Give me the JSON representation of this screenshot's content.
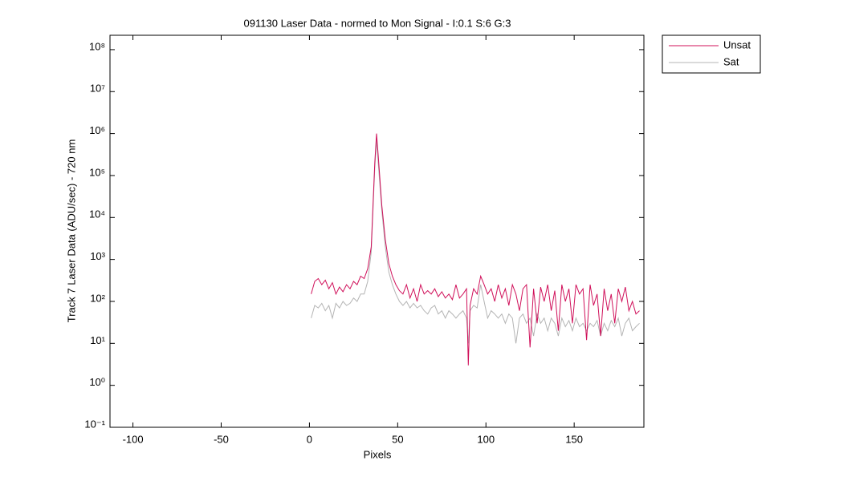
{
  "chart_data": {
    "type": "line",
    "title": "091130 Laser Data - normed to Mon Signal -   I:0.1  S:6  G:3",
    "xlabel": "Pixels",
    "ylabel": "Track 7 Laser Data (ADU/sec) - 720 nm",
    "x": [
      1,
      3,
      5,
      7,
      9,
      11,
      13,
      15,
      17,
      19,
      21,
      23,
      25,
      27,
      29,
      31,
      33,
      35,
      37,
      38,
      39,
      41,
      43,
      45,
      47,
      49,
      51,
      53,
      55,
      57,
      59,
      61,
      63,
      65,
      67,
      69,
      71,
      73,
      75,
      77,
      79,
      81,
      83,
      85,
      87,
      89,
      90,
      91,
      93,
      95,
      97,
      99,
      101,
      103,
      105,
      107,
      109,
      111,
      113,
      115,
      117,
      119,
      121,
      123,
      125,
      127,
      129,
      131,
      133,
      135,
      137,
      139,
      141,
      143,
      145,
      147,
      149,
      151,
      153,
      155,
      157,
      159,
      161,
      163,
      165,
      167,
      169,
      171,
      173,
      175,
      177,
      179,
      181,
      183,
      185,
      187
    ],
    "series": [
      {
        "name": "Unsat",
        "color": "#d0105a",
        "values": [
          150,
          300,
          350,
          250,
          320,
          200,
          280,
          150,
          220,
          170,
          250,
          200,
          300,
          250,
          400,
          350,
          600,
          2000,
          200000,
          1000000,
          300000,
          20000,
          3000,
          800,
          400,
          250,
          180,
          150,
          250,
          120,
          200,
          100,
          250,
          150,
          180,
          150,
          200,
          130,
          170,
          120,
          150,
          110,
          250,
          120,
          150,
          200,
          3,
          80,
          200,
          150,
          400,
          250,
          150,
          200,
          100,
          250,
          120,
          200,
          80,
          250,
          150,
          60,
          200,
          250,
          8,
          200,
          30,
          220,
          100,
          250,
          60,
          180,
          20,
          250,
          100,
          200,
          30,
          250,
          150,
          200,
          12,
          250,
          80,
          150,
          15,
          200,
          60,
          150,
          30,
          200,
          100,
          220,
          60,
          100,
          50,
          60
        ]
      },
      {
        "name": "Sat",
        "color": "#b4b4b4",
        "values": [
          40,
          80,
          70,
          90,
          60,
          80,
          40,
          90,
          70,
          100,
          80,
          90,
          120,
          100,
          150,
          150,
          300,
          1500,
          150000,
          700000,
          200000,
          15000,
          2000,
          500,
          250,
          150,
          100,
          80,
          100,
          70,
          90,
          70,
          80,
          60,
          50,
          70,
          80,
          50,
          60,
          40,
          60,
          50,
          40,
          50,
          60,
          40,
          10,
          60,
          80,
          70,
          250,
          100,
          40,
          60,
          50,
          40,
          50,
          30,
          50,
          40,
          10,
          40,
          50,
          30,
          40,
          15,
          50,
          30,
          40,
          20,
          40,
          30,
          15,
          40,
          25,
          35,
          20,
          40,
          25,
          30,
          20,
          30,
          25,
          35,
          15,
          30,
          20,
          35,
          25,
          40,
          15,
          30,
          40,
          20,
          25,
          30
        ]
      }
    ],
    "xlim": [
      -113,
      189.5
    ],
    "xticks": [
      -100,
      -50,
      0,
      50,
      100,
      150
    ],
    "ylim": [
      0.1,
      220000000
    ],
    "yscale": "log",
    "yticks": [
      {
        "value": 0.1,
        "label": "10⁻¹"
      },
      {
        "value": 1,
        "label": "10⁰"
      },
      {
        "value": 10,
        "label": "10¹"
      },
      {
        "value": 100,
        "label": "10²"
      },
      {
        "value": 1000,
        "label": "10³"
      },
      {
        "value": 10000,
        "label": "10⁴"
      },
      {
        "value": 100000,
        "label": "10⁵"
      },
      {
        "value": 1000000,
        "label": "10⁶"
      },
      {
        "value": 10000000,
        "label": "10⁷"
      },
      {
        "value": 100000000,
        "label": "10⁸"
      }
    ],
    "grid": false,
    "legend": "northeastoutside"
  }
}
